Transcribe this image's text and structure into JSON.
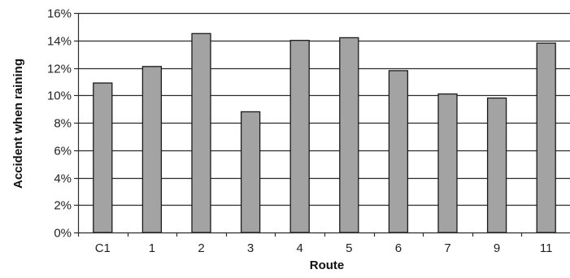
{
  "chart_data": {
    "type": "bar",
    "title": "",
    "xlabel": "Route",
    "ylabel": "Accident when raining",
    "categories": [
      "C1",
      "1",
      "2",
      "3",
      "4",
      "5",
      "6",
      "7",
      "9",
      "11"
    ],
    "values": [
      0.109,
      0.121,
      0.145,
      0.088,
      0.14,
      0.142,
      0.118,
      0.101,
      0.098,
      0.138
    ],
    "ylim": [
      0,
      0.16
    ],
    "yticks": [
      0,
      0.02,
      0.04,
      0.06,
      0.08,
      0.1,
      0.12,
      0.14,
      0.16
    ],
    "ytick_labels": [
      "0%",
      "2%",
      "4%",
      "6%",
      "8%",
      "10%",
      "12%",
      "14%",
      "16%"
    ],
    "grid": true,
    "legend": "none",
    "colors": {
      "bar_fill": "#a3a3a3",
      "bar_stroke": "#1a1a1a",
      "grid": "#2b2b2b",
      "axis": "#2b2b2b"
    }
  }
}
